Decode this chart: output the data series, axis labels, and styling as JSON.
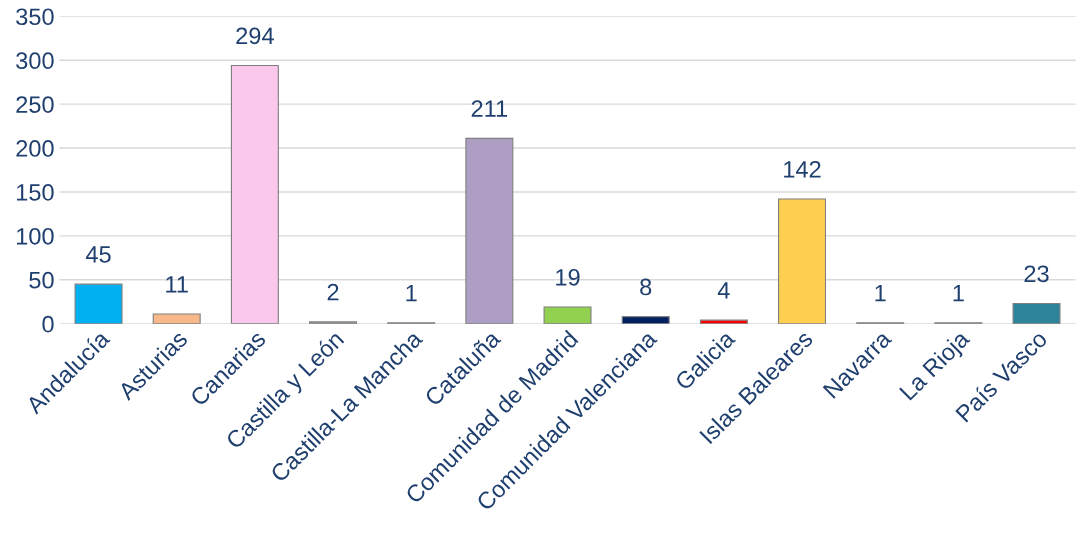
{
  "chart_data": {
    "type": "bar",
    "categories": [
      "Andalucía",
      "Asturias",
      "Canarias",
      "Castilla y León",
      "Castilla-La Mancha",
      "Cataluña",
      "Comunidad de Madrid",
      "Comunidad Valenciana",
      "Galicia",
      "Islas Baleares",
      "Navarra",
      "La Rioja",
      "País Vasco"
    ],
    "values": [
      45,
      11,
      294,
      2,
      1,
      211,
      19,
      8,
      4,
      142,
      1,
      1,
      23
    ],
    "colors": [
      "#00b0f0",
      "#f8b98a",
      "#f9c8ea",
      "#a6a6a6",
      "#a6a6a6",
      "#ae9ec4",
      "#92d050",
      "#002060",
      "#ff0000",
      "#ffd050",
      "#a6a6a6",
      "#a6a6a6",
      "#2e849a"
    ],
    "ylim": [
      0,
      350
    ],
    "yticks": [
      0,
      50,
      100,
      150,
      200,
      250,
      300,
      350
    ],
    "grid": "y",
    "data_labels": true
  }
}
